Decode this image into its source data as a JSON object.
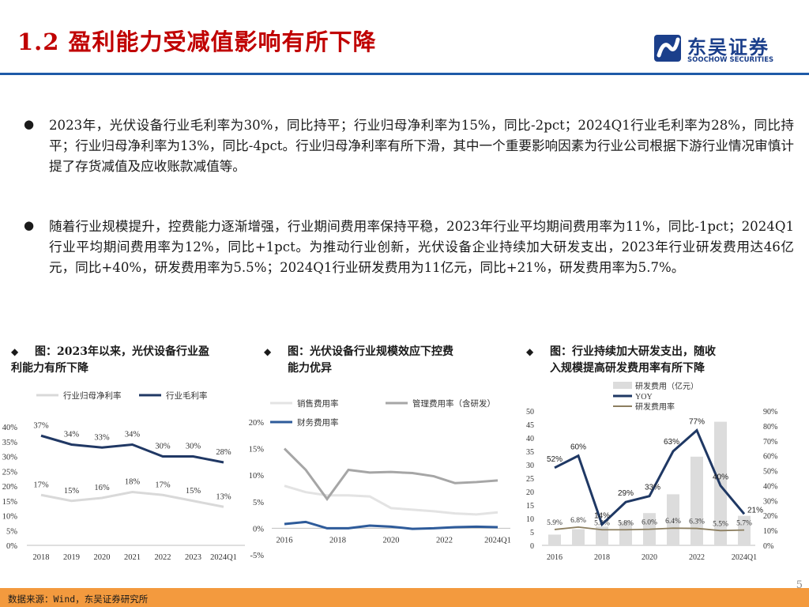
{
  "header": {
    "title": "1.2 盈利能力受减值影响有所下降",
    "logo_name": "东吴证券",
    "logo_sub": "SOOCHOW SECURITIES",
    "accent": "#c00000",
    "rule_color": "#1e5aa8"
  },
  "bullets": [
    {
      "symbol": "●",
      "text": "2023年，光伏设备行业毛利率为30%，同比持平；行业归母净利率为15%，同比-2pct；2024Q1行业毛利率为28%，同比持平；行业归母净利率为13%，同比-4pct。行业归母净利率有所下滑，其中一个重要影响因素为行业公司根据下游行业情况审慎计提了存货减值及应收账款减值等。"
    },
    {
      "symbol": "●",
      "text": "随着行业规模提升，控费能力逐渐增强，行业期间费用率保持平稳，2023年行业平均期间费用率为11%，同比-1pct；2024Q1行业平均期间费用率为12%，同比+1pct。为推动行业创新，光伏设备企业持续加大研发支出，2023年行业研发费用达46亿元，同比+40%，研发费用率为5.5%；2024Q1行业研发费用为11亿元，同比+21%，研发费用率为5.7%。"
    }
  ],
  "captions": [
    {
      "symbol": "◆",
      "line1": "图：2023年以来，光伏设备行业盈",
      "line2": "利能力有所下降"
    },
    {
      "symbol": "◆",
      "line1": "图：光伏设备行业规模效应下控费",
      "line2": "能力优异"
    },
    {
      "symbol": "◆",
      "line1": "图：行业持续加大研发支出，随收",
      "line2": "入规模提高研发费用率有所下降"
    }
  ],
  "chart_data": [
    {
      "type": "line",
      "categories": [
        "2018",
        "2019",
        "2020",
        "2021",
        "2022",
        "2023",
        "2024Q1"
      ],
      "series": [
        {
          "name": "行业归母净利率",
          "color": "#d9d9d9",
          "values": [
            17,
            15,
            16,
            18,
            17,
            15,
            13
          ],
          "labels": [
            "17%",
            "15%",
            "16%",
            "18%",
            "17%",
            "15%",
            "13%"
          ]
        },
        {
          "name": "行业毛利率",
          "color": "#203864",
          "values": [
            37,
            34,
            33,
            34,
            30,
            30,
            28
          ],
          "labels": [
            "37%",
            "34%",
            "33%",
            "34%",
            "30%",
            "30%",
            "28%"
          ]
        }
      ],
      "ylim": [
        0,
        40
      ],
      "yticks": [
        "0%",
        "5%",
        "10%",
        "15%",
        "20%",
        "25%",
        "30%",
        "35%",
        "40%"
      ],
      "grid": false,
      "legend": "top"
    },
    {
      "type": "line",
      "xticks": [
        "2016",
        "2018",
        "2020",
        "2022",
        "2024Q1"
      ],
      "series": [
        {
          "name": "销售费用率",
          "color": "#e3e3e3",
          "values": [
            8,
            6.8,
            6.2,
            6.2,
            6,
            3.8,
            3.5,
            3.2,
            2.8,
            2.6,
            3
          ]
        },
        {
          "name": "管理费用率（含研发）",
          "color": "#a6a6a6",
          "values": [
            15,
            11,
            5.5,
            11,
            10.5,
            10.6,
            10.4,
            9.8,
            8.5,
            8.7,
            9
          ]
        },
        {
          "name": "财务费用率",
          "color": "#2e5b9a",
          "values": [
            0.8,
            1.2,
            0,
            0,
            0.5,
            0.3,
            -0.1,
            0,
            0.2,
            0.3,
            0.2
          ]
        }
      ],
      "ylim": [
        -5,
        20
      ],
      "yticks": [
        "-5%",
        "0%",
        "5%",
        "10%",
        "15%",
        "20%"
      ],
      "grid": false,
      "legend": "top"
    },
    {
      "type": "bar",
      "categories": [
        "2016",
        "2017",
        "2018",
        "2019",
        "2020",
        "2021",
        "2022",
        "2023",
        "2024Q1"
      ],
      "xticks": [
        "2016",
        "2018",
        "2020",
        "2022",
        "2024Q1"
      ],
      "series": [
        {
          "name": "研发费用（亿元）",
          "color": "#dcdcdc",
          "values": [
            4,
            6,
            7,
            9,
            12,
            19,
            33,
            46,
            11
          ]
        },
        {
          "name": "YOY",
          "color": "#1f3864",
          "values": [
            52,
            60,
            14,
            29,
            33,
            63,
            77,
            40,
            21
          ],
          "labels": [
            "52%",
            "60%",
            "14%",
            "29%",
            "33%",
            "63%",
            "77%",
            "40%",
            "21%"
          ]
        },
        {
          "name": "研发费用率",
          "color": "#8c7e5f",
          "values": [
            5.9,
            6.8,
            5.8,
            5.8,
            6.0,
            6.4,
            6.3,
            5.5,
            5.7
          ],
          "labels": [
            "5.9%",
            "6.8%",
            "5.8%",
            "5.8%",
            "6.0%",
            "6.4%",
            "6.3%",
            "5.5%",
            "5.7%"
          ]
        }
      ],
      "ylim_left": [
        0,
        50
      ],
      "ylim_right": [
        0,
        90
      ],
      "yticks_left": [
        "0",
        "5",
        "10",
        "15",
        "20",
        "25",
        "30",
        "35",
        "40",
        "45",
        "50"
      ],
      "yticks_right": [
        "0%",
        "10%",
        "20%",
        "30%",
        "40%",
        "50%",
        "60%",
        "70%",
        "80%",
        "90%"
      ],
      "grid": false,
      "legend": "top"
    }
  ],
  "footer": {
    "source": "数据来源：Wind，东吴证券研究所",
    "page": "5",
    "bar_color": "#f39a3e"
  }
}
